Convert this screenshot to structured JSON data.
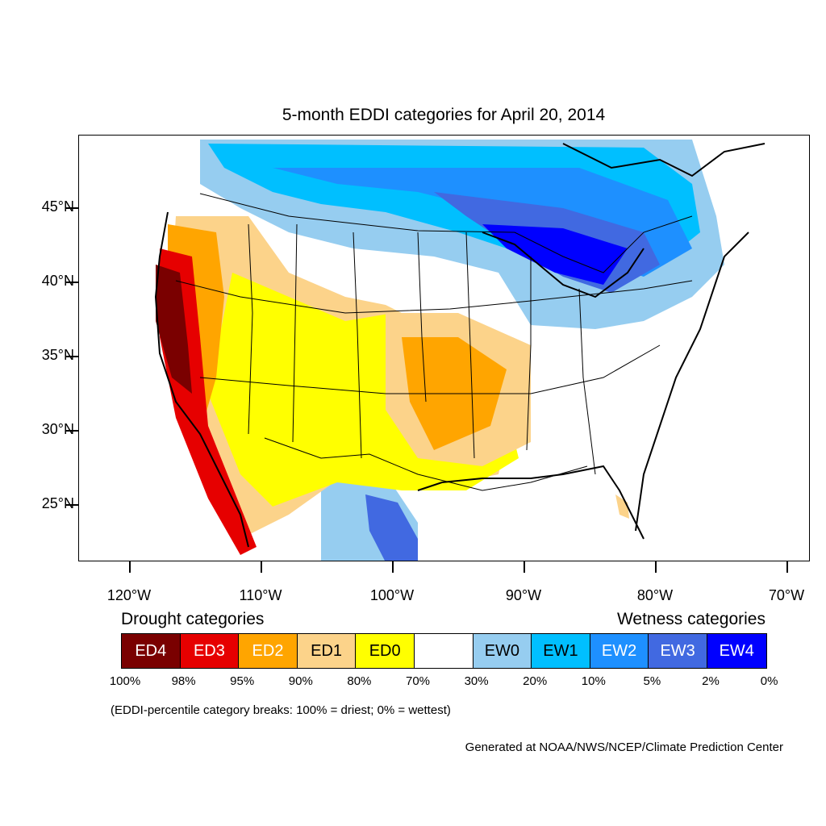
{
  "title": "5-month EDDI categories for April 20, 2014",
  "axes": {
    "lat_ticks": [
      {
        "label": "45°N",
        "value": 45
      },
      {
        "label": "40°N",
        "value": 40
      },
      {
        "label": "35°N",
        "value": 35
      },
      {
        "label": "30°N",
        "value": 30
      },
      {
        "label": "25°N",
        "value": 25
      }
    ],
    "lon_ticks": [
      {
        "label": "120°W",
        "value": -120
      },
      {
        "label": "110°W",
        "value": -110
      },
      {
        "label": "100°W",
        "value": -100
      },
      {
        "label": "90°W",
        "value": -90
      },
      {
        "label": "80°W",
        "value": -80
      },
      {
        "label": "70°W",
        "value": -70
      }
    ]
  },
  "legend": {
    "drought_heading": "Drought categories",
    "wetness_heading": "Wetness categories",
    "categories": [
      {
        "label": "ED4",
        "color": "#7a0000",
        "text_color": "#ffffff"
      },
      {
        "label": "ED3",
        "color": "#e60000",
        "text_color": "#ffffff"
      },
      {
        "label": "ED2",
        "color": "#ffa500",
        "text_color": "#ffffff"
      },
      {
        "label": "ED1",
        "color": "#fcd38a",
        "text_color": "#000000"
      },
      {
        "label": "ED0",
        "color": "#ffff00",
        "text_color": "#000000"
      },
      {
        "label": "",
        "color": "#ffffff",
        "text_color": "#000000"
      },
      {
        "label": "EW0",
        "color": "#96cdf0",
        "text_color": "#000000"
      },
      {
        "label": "EW1",
        "color": "#00bfff",
        "text_color": "#000000"
      },
      {
        "label": "EW2",
        "color": "#1e90ff",
        "text_color": "#ffffff"
      },
      {
        "label": "EW3",
        "color": "#4169e1",
        "text_color": "#ffffff"
      },
      {
        "label": "EW4",
        "color": "#0000ff",
        "text_color": "#ffffff"
      }
    ],
    "breaks": [
      "100%",
      "98%",
      "95%",
      "90%",
      "80%",
      "70%",
      "30%",
      "20%",
      "10%",
      "5%",
      "2%",
      "0%"
    ]
  },
  "note": "(EDDI-percentile category breaks: 100% = driest; 0% = wettest)",
  "credit": "Generated at NOAA/NWS/NCEP/Climate Prediction Center"
}
